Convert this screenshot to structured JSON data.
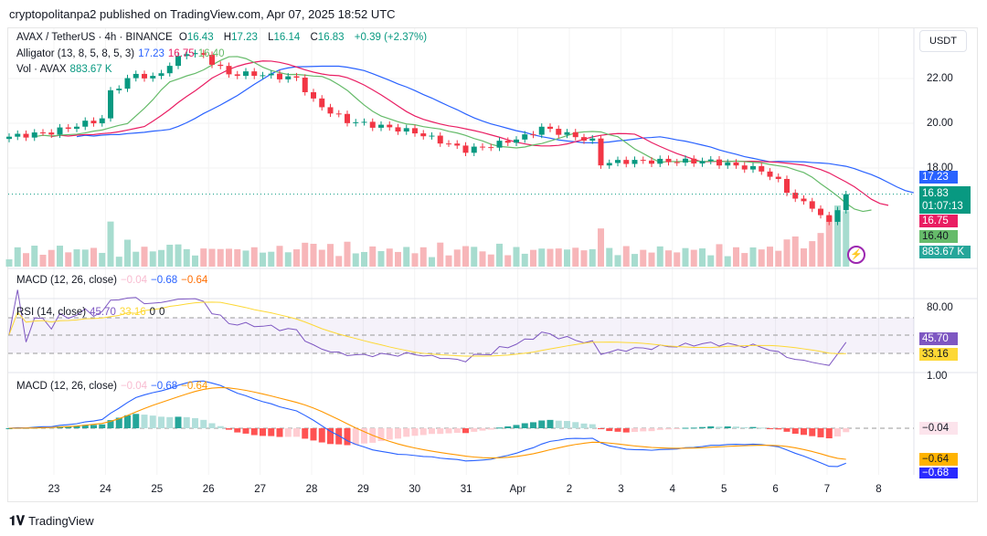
{
  "published": "cryptopolitanpa2 published on TradingView.com, Apr 07, 2025 18:52 UTC",
  "symbol": {
    "title": "AVAX / TetherUS · 4h · BINANCE",
    "o_label": "O",
    "o": "16.43",
    "h_label": "H",
    "h": "17.23",
    "l_label": "L",
    "l": "16.14",
    "c_label": "C",
    "c": "16.83",
    "change": "+0.39 (+2.37%)"
  },
  "alligator": {
    "label": "Alligator (13, 8, 5, 8, 5, 3)",
    "jaw": "17.23",
    "teeth": "16.75",
    "lips": "16.40"
  },
  "volume": {
    "label": "Vol · AVAX",
    "value": "883.67 K"
  },
  "macd_top": {
    "label": "MACD (12, 26, close)",
    "hist": "−0.04",
    "macd": "−0.68",
    "signal": "−0.64"
  },
  "rsi": {
    "label": "RSI (14, close)",
    "value": "45.70",
    "ma": "33.16",
    "d1": "0",
    "d2": "0",
    "axis": "80.00"
  },
  "macd": {
    "label": "MACD (12, 26, close)",
    "hist": "−0.04",
    "macd": "−0.68",
    "signal": "−0.64",
    "axis": "1.00"
  },
  "currency": "USDT",
  "price_axis": [
    "22.00",
    "20.00",
    "18.00"
  ],
  "tags": {
    "jaw": "17.23",
    "close": "16.83",
    "countdown": "01:07:13",
    "teeth": "16.75",
    "lips": "16.40",
    "vol": "883.67 K"
  },
  "dates": [
    "23",
    "24",
    "25",
    "26",
    "27",
    "28",
    "29",
    "30",
    "31",
    "Apr",
    "2",
    "3",
    "4",
    "5",
    "6",
    "7",
    "8"
  ],
  "colors": {
    "up": "#089981",
    "down": "#f23645",
    "jaw": "#2962ff",
    "teeth": "#e91e63",
    "lips": "#66bb6a",
    "rsi": "#7e57c2",
    "rsi_ma": "#fdd835",
    "macd": "#2962ff",
    "signal": "#ff9800"
  },
  "brand": "TradingView",
  "chart_data": {
    "type": "candlestick",
    "price_keypoints": [
      [
        0,
        19.4
      ],
      [
        5,
        19.6
      ],
      [
        11,
        20.2
      ],
      [
        12,
        21.4
      ],
      [
        15,
        22.2
      ],
      [
        17,
        22.0
      ],
      [
        19,
        22.6
      ],
      [
        21,
        23.2
      ],
      [
        23,
        23.0
      ],
      [
        26,
        22.2
      ],
      [
        29,
        22.2
      ],
      [
        34,
        22.0
      ],
      [
        36,
        21.0
      ],
      [
        38,
        20.5
      ],
      [
        40,
        20.1
      ],
      [
        45,
        19.8
      ],
      [
        48,
        19.6
      ],
      [
        51,
        19.2
      ],
      [
        54,
        18.8
      ],
      [
        57,
        19.0
      ],
      [
        61,
        19.4
      ],
      [
        63,
        19.8
      ],
      [
        66,
        19.5
      ],
      [
        69,
        19.2
      ],
      [
        70,
        18.2
      ],
      [
        73,
        18.3
      ],
      [
        78,
        18.3
      ],
      [
        83,
        18.3
      ],
      [
        86,
        18.1
      ],
      [
        89,
        17.9
      ],
      [
        91,
        17.4
      ],
      [
        93,
        16.6
      ],
      [
        95,
        16.3
      ],
      [
        96,
        15.8
      ],
      [
        97,
        15.6
      ],
      [
        98,
        16.2
      ],
      [
        99,
        16.83
      ]
    ]
  }
}
